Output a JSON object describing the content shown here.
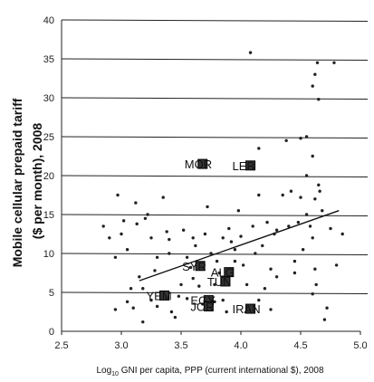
{
  "chart_data": {
    "type": "scatter",
    "xlabel_parts": [
      "Log",
      "10",
      " GNI per capita, PPP (current international $), 2008"
    ],
    "ylabel_lines": [
      "Mobile cellular prepaid tariff",
      "($ per month), 2008"
    ],
    "xlim": [
      2.5,
      5.0
    ],
    "ylim": [
      0,
      40
    ],
    "xticks": [
      "2.5",
      "3.0",
      "3.5",
      "4.0",
      "4.5",
      "5.0"
    ],
    "yticks": [
      "0",
      "5",
      "10",
      "15",
      "20",
      "25",
      "30",
      "35",
      "40"
    ],
    "grid": "horizontal",
    "trendline": {
      "x": [
        3.15,
        4.82
      ],
      "y": [
        6.5,
        15.5
      ]
    },
    "highlighted": [
      {
        "label": "MOR",
        "x": 3.68,
        "y": 21.5
      },
      {
        "label": "LEB",
        "x": 4.08,
        "y": 21.3
      },
      {
        "label": "SYR",
        "x": 3.66,
        "y": 8.4
      },
      {
        "label": "ALG",
        "x": 3.9,
        "y": 7.6
      },
      {
        "label": "TUN",
        "x": 3.87,
        "y": 6.4
      },
      {
        "label": "YEM",
        "x": 3.36,
        "y": 4.6
      },
      {
        "label": "EGY",
        "x": 3.73,
        "y": 4.0
      },
      {
        "label": "JOR",
        "x": 3.73,
        "y": 3.2
      },
      {
        "label": "IRAN",
        "x": 4.08,
        "y": 2.9
      }
    ],
    "points": [
      [
        2.85,
        13.5
      ],
      [
        2.9,
        12.0
      ],
      [
        2.95,
        9.5
      ],
      [
        2.97,
        17.5
      ],
      [
        3.0,
        12.5
      ],
      [
        3.02,
        14.2
      ],
      [
        2.95,
        2.8
      ],
      [
        3.05,
        10.5
      ],
      [
        3.08,
        5.5
      ],
      [
        3.1,
        3.0
      ],
      [
        3.12,
        16.5
      ],
      [
        3.13,
        13.8
      ],
      [
        3.15,
        7.0
      ],
      [
        3.18,
        5.5
      ],
      [
        3.2,
        14.5
      ],
      [
        3.22,
        15.0
      ],
      [
        3.25,
        12.0
      ],
      [
        3.28,
        7.8
      ],
      [
        3.3,
        9.5
      ],
      [
        3.3,
        3.2
      ],
      [
        3.18,
        1.2
      ],
      [
        3.25,
        4.0
      ],
      [
        3.35,
        17.2
      ],
      [
        3.38,
        12.8
      ],
      [
        3.4,
        10.0
      ],
      [
        3.42,
        2.5
      ],
      [
        3.45,
        1.8
      ],
      [
        3.48,
        4.5
      ],
      [
        3.5,
        6.0
      ],
      [
        3.52,
        13.0
      ],
      [
        3.55,
        9.5
      ],
      [
        3.58,
        8.2
      ],
      [
        3.6,
        12.0
      ],
      [
        3.62,
        11.0
      ],
      [
        3.65,
        5.8
      ],
      [
        3.68,
        3.5
      ],
      [
        3.7,
        12.5
      ],
      [
        3.72,
        16.0
      ],
      [
        3.75,
        10.0
      ],
      [
        3.78,
        6.0
      ],
      [
        3.78,
        3.8
      ],
      [
        3.8,
        9.0
      ],
      [
        3.82,
        7.5
      ],
      [
        3.85,
        12.0
      ],
      [
        3.85,
        4.0
      ],
      [
        3.88,
        2.5
      ],
      [
        3.9,
        13.2
      ],
      [
        3.92,
        11.5
      ],
      [
        3.95,
        10.5
      ],
      [
        3.95,
        9.0
      ],
      [
        3.98,
        15.5
      ],
      [
        4.0,
        12.2
      ],
      [
        4.02,
        8.5
      ],
      [
        4.05,
        6.0
      ],
      [
        4.05,
        3.0
      ],
      [
        4.08,
        35.8
      ],
      [
        4.1,
        13.5
      ],
      [
        4.12,
        10.0
      ],
      [
        4.15,
        17.5
      ],
      [
        4.15,
        23.5
      ],
      [
        4.18,
        11.0
      ],
      [
        4.2,
        5.5
      ],
      [
        4.22,
        14.0
      ],
      [
        4.25,
        8.0
      ],
      [
        4.28,
        12.5
      ],
      [
        4.3,
        7.0
      ],
      [
        4.3,
        13.0
      ],
      [
        4.35,
        17.5
      ],
      [
        4.38,
        24.5
      ],
      [
        4.4,
        13.5
      ],
      [
        4.42,
        18.0
      ],
      [
        4.45,
        7.5
      ],
      [
        4.48,
        14.0
      ],
      [
        4.5,
        17.2
      ],
      [
        4.5,
        24.8
      ],
      [
        4.52,
        10.5
      ],
      [
        4.55,
        20.0
      ],
      [
        4.55,
        15.0
      ],
      [
        4.58,
        13.5
      ],
      [
        4.6,
        31.5
      ],
      [
        4.6,
        12.0
      ],
      [
        4.62,
        33.0
      ],
      [
        4.62,
        8.0
      ],
      [
        4.62,
        17.0
      ],
      [
        4.63,
        6.0
      ],
      [
        4.64,
        34.5
      ],
      [
        4.65,
        29.8
      ],
      [
        4.65,
        18.8
      ],
      [
        4.66,
        18.0
      ],
      [
        4.68,
        15.5
      ],
      [
        4.7,
        1.5
      ],
      [
        4.72,
        3.0
      ],
      [
        4.75,
        13.2
      ],
      [
        4.78,
        34.5
      ],
      [
        4.8,
        8.5
      ],
      [
        4.85,
        12.5
      ],
      [
        4.6,
        4.8
      ],
      [
        4.6,
        22.5
      ],
      [
        4.55,
        25.0
      ],
      [
        4.45,
        9.0
      ],
      [
        4.25,
        2.8
      ],
      [
        4.15,
        4.0
      ],
      [
        3.55,
        4.2
      ],
      [
        3.4,
        11.8
      ],
      [
        3.6,
        6.8
      ],
      [
        3.05,
        3.8
      ]
    ]
  }
}
